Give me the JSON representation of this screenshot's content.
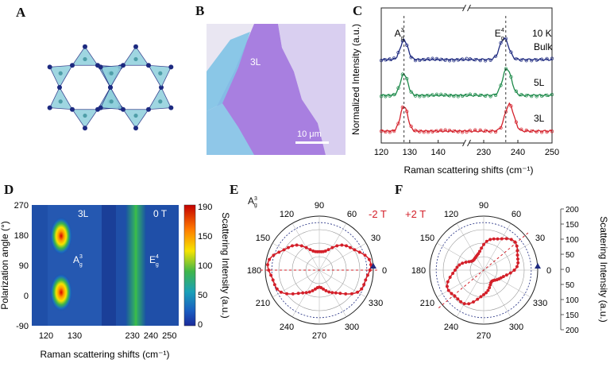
{
  "panels": {
    "A": "A",
    "B": "B",
    "C": "C",
    "D": "D",
    "E": "E",
    "F": "F"
  },
  "panel_b": {
    "layer_label": "3L",
    "scalebar_label": "10 μm"
  },
  "chart_data": [
    {
      "id": "C",
      "type": "line",
      "title": "",
      "xlabel": "Raman scattering shifts (cm⁻¹)",
      "ylabel": "Normalized Intensity (a.u.)",
      "temperature_label": "10 K",
      "x_ticks_left": [
        "120",
        "130",
        "140"
      ],
      "x_ticks_right": [
        "230",
        "240",
        "250"
      ],
      "x_ranges": [
        [
          120,
          150
        ],
        [
          225,
          250
        ]
      ],
      "peak_labels": [
        {
          "name": "A",
          "sup": "3",
          "sub": "g"
        },
        {
          "name": "E",
          "sup": "4",
          "sub": "g"
        }
      ],
      "peak_positions": [
        128,
        236
      ],
      "series": [
        {
          "name": "Bulk",
          "color": "#1f2b80",
          "offset": 2.0,
          "peaks": [
            [
              128,
              0.55
            ],
            [
              236,
              0.6
            ]
          ]
        },
        {
          "name": "5L",
          "color": "#1d8a4a",
          "offset": 1.0,
          "peaks": [
            [
              128,
              0.6
            ],
            [
              236.8,
              0.75
            ]
          ]
        },
        {
          "name": "3L",
          "color": "#d4202a",
          "offset": 0.0,
          "peaks": [
            [
              128,
              0.7
            ],
            [
              237.5,
              0.75
            ]
          ]
        }
      ]
    },
    {
      "id": "D",
      "type": "heatmap",
      "title": "",
      "xlabel": "Raman scattering shifts (cm⁻¹)",
      "ylabel": "Polarization  angle (°)",
      "sample_label": "3L",
      "field_label": "0 T",
      "x_ticks_left": [
        "120",
        "130"
      ],
      "x_ticks_right": [
        "230",
        "240",
        "250"
      ],
      "y_ticks": [
        "270",
        "180",
        "90",
        "0",
        "-90"
      ],
      "colorbar_label": "Scattering Intensity (a.u.)",
      "colorbar_ticks": [
        "190",
        "150",
        "100",
        "50",
        "0"
      ],
      "peak_labels": [
        {
          "name": "A",
          "sup": "3",
          "sub": "g"
        },
        {
          "name": "E",
          "sup": "4",
          "sub": "g"
        }
      ],
      "hotspots": [
        [
          128,
          180,
          190
        ],
        [
          128,
          0,
          190
        ]
      ]
    },
    {
      "id": "E",
      "type": "scatter",
      "title": "",
      "mode_label": {
        "name": "A",
        "sup": "3",
        "sub": "g"
      },
      "field_label": "-2 T",
      "angle_labels": [
        "0",
        "30",
        "60",
        "90",
        "120",
        "150",
        "180",
        "210",
        "240",
        "270",
        "300",
        "330"
      ],
      "lobe_axis_deg": 0,
      "max_intensity": 150
    },
    {
      "id": "F",
      "type": "scatter",
      "title": "",
      "field_label": "+2 T",
      "angle_labels": [
        "0",
        "30",
        "60",
        "90",
        "120",
        "150",
        "180",
        "210",
        "240",
        "270",
        "300",
        "330"
      ],
      "lobe_axis_deg": 40,
      "max_intensity": 120,
      "radial_axis_label": "Scattering Intensity (a.u.)",
      "radial_ticks": [
        "200",
        "150",
        "100",
        "50",
        "0",
        "50",
        "100",
        "150",
        "200"
      ]
    }
  ],
  "colors": {
    "red": "#d4202a",
    "green": "#1d8a4a",
    "navy": "#1f2b80",
    "teal": "#7ec8d6"
  }
}
